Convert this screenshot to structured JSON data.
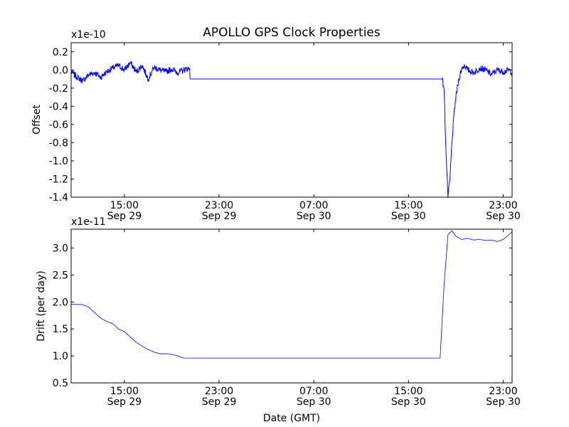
{
  "title": "APOLLO GPS Clock Properties",
  "colors": {
    "series": "#0000ff",
    "axes": "#000000",
    "background": "#ffffff"
  },
  "chart_data": [
    {
      "type": "line",
      "title": "APOLLO GPS Clock Properties",
      "ylabel": "Offset",
      "xlabel": "",
      "y_multiplier": "x1e-10",
      "ylim": [
        -1.4,
        0.3
      ],
      "yticks": [
        "0.2",
        "0.0",
        "-0.2",
        "-0.4",
        "-0.6",
        "-0.8",
        "-1.0",
        "-1.2",
        "-1.4"
      ],
      "ytick_values": [
        0.2,
        0.0,
        -0.2,
        -0.4,
        -0.6,
        -0.8,
        -1.0,
        -1.2,
        -1.4
      ],
      "xlim": [
        "Sep 29 10:30",
        "Sep 30 23:45"
      ],
      "xticks": [
        {
          "time": "Sep 29 15:00",
          "line1": "15:00",
          "line2": "Sep 29"
        },
        {
          "time": "Sep 29 23:00",
          "line1": "23:00",
          "line2": "Sep 29"
        },
        {
          "time": "Sep 30 07:00",
          "line1": "07:00",
          "line2": "Sep 30"
        },
        {
          "time": "Sep 30 15:00",
          "line1": "15:00",
          "line2": "Sep 30"
        },
        {
          "time": "Sep 30 23:00",
          "line1": "23:00",
          "line2": "Sep 30"
        }
      ],
      "series": [
        {
          "x": [
            "Sep 29 10:30",
            "Sep 29 11:00",
            "Sep 29 11:30",
            "Sep 29 12:00",
            "Sep 29 12:30",
            "Sep 29 13:00",
            "Sep 29 13:30",
            "Sep 29 14:00",
            "Sep 29 14:30",
            "Sep 29 15:00",
            "Sep 29 15:30",
            "Sep 29 16:00",
            "Sep 29 16:30",
            "Sep 29 17:00",
            "Sep 29 17:30",
            "Sep 29 18:00",
            "Sep 29 18:30",
            "Sep 29 19:00",
            "Sep 29 19:30",
            "Sep 29 20:00",
            "Sep 29 20:30",
            "Sep 29 20:35",
            "Sep 30 17:50",
            "Sep 30 18:00",
            "Sep 30 18:10",
            "Sep 30 18:20",
            "Sep 30 18:30",
            "Sep 30 18:40",
            "Sep 30 18:50",
            "Sep 30 19:00",
            "Sep 30 19:15",
            "Sep 30 19:30",
            "Sep 30 19:45",
            "Sep 30 20:00",
            "Sep 30 20:30",
            "Sep 30 21:00",
            "Sep 30 21:30",
            "Sep 30 22:00",
            "Sep 30 22:30",
            "Sep 30 23:00",
            "Sep 30 23:30",
            "Sep 30 23:45"
          ],
          "y": [
            -0.02,
            -0.08,
            -0.12,
            -0.05,
            -0.03,
            -0.08,
            -0.02,
            0.02,
            0.05,
            0.0,
            0.08,
            -0.02,
            0.05,
            -0.1,
            0.03,
            0.0,
            -0.02,
            0.01,
            -0.03,
            0.0,
            0.02,
            -0.1,
            -0.1,
            -0.2,
            -0.9,
            -1.4,
            -1.2,
            -0.8,
            -0.5,
            -0.3,
            -0.1,
            0.02,
            0.05,
            0.0,
            -0.03,
            0.02,
            0.0,
            -0.05,
            0.0,
            -0.02,
            0.0,
            -0.03
          ]
        }
      ]
    },
    {
      "type": "line",
      "ylabel": "Drift (per day)",
      "xlabel": "Date (GMT)",
      "y_multiplier": "x1e-11",
      "ylim": [
        0.5,
        3.35
      ],
      "yticks": [
        "3.0",
        "2.5",
        "2.0",
        "1.5",
        "1.0",
        "0.5"
      ],
      "ytick_values": [
        3.0,
        2.5,
        2.0,
        1.5,
        1.0,
        0.5
      ],
      "xlim": [
        "Sep 29 10:30",
        "Sep 30 23:45"
      ],
      "xticks": [
        {
          "time": "Sep 29 15:00",
          "line1": "15:00",
          "line2": "Sep 29"
        },
        {
          "time": "Sep 29 23:00",
          "line1": "23:00",
          "line2": "Sep 29"
        },
        {
          "time": "Sep 30 07:00",
          "line1": "07:00",
          "line2": "Sep 30"
        },
        {
          "time": "Sep 30 15:00",
          "line1": "15:00",
          "line2": "Sep 30"
        },
        {
          "time": "Sep 30 23:00",
          "line1": "23:00",
          "line2": "Sep 30"
        }
      ],
      "series": [
        {
          "x": [
            "Sep 29 10:30",
            "Sep 29 11:30",
            "Sep 29 12:00",
            "Sep 29 12:30",
            "Sep 29 13:00",
            "Sep 29 13:30",
            "Sep 29 14:00",
            "Sep 29 14:30",
            "Sep 29 15:00",
            "Sep 29 15:30",
            "Sep 29 16:00",
            "Sep 29 16:30",
            "Sep 29 17:00",
            "Sep 29 17:30",
            "Sep 29 18:00",
            "Sep 29 18:30",
            "Sep 29 19:00",
            "Sep 29 19:30",
            "Sep 29 20:00",
            "Sep 29 20:30",
            "Sep 29 21:00",
            "Sep 30 17:40",
            "Sep 30 18:00",
            "Sep 30 18:20",
            "Sep 30 18:40",
            "Sep 30 19:00",
            "Sep 30 19:30",
            "Sep 30 20:00",
            "Sep 30 20:30",
            "Sep 30 21:00",
            "Sep 30 21:30",
            "Sep 30 22:00",
            "Sep 30 22:30",
            "Sep 30 23:00",
            "Sep 30 23:30",
            "Sep 30 23:45"
          ],
          "y": [
            1.96,
            1.95,
            1.9,
            1.8,
            1.7,
            1.64,
            1.6,
            1.5,
            1.45,
            1.35,
            1.25,
            1.18,
            1.12,
            1.07,
            1.04,
            1.04,
            1.03,
            1.0,
            0.96,
            0.96,
            0.96,
            0.96,
            2.3,
            3.25,
            3.32,
            3.22,
            3.16,
            3.18,
            3.15,
            3.16,
            3.14,
            3.15,
            3.12,
            3.16,
            3.25,
            3.3
          ]
        }
      ]
    }
  ]
}
